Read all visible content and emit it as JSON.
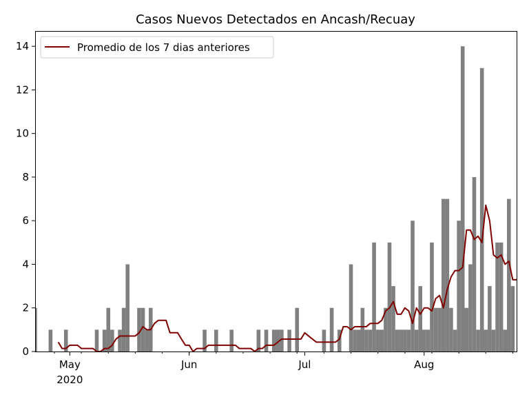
{
  "chart_data": {
    "type": "bar",
    "title": "Casos Nuevos Detectados en Ancash/Recuay",
    "xlabel": "",
    "ylabel": "",
    "xlim": [
      "2020-04-22",
      "2020-08-25"
    ],
    "ylim": [
      0,
      14.7
    ],
    "grid": false,
    "legend_position": "top-left",
    "x_ticks": [
      {
        "date": "2020-05-01",
        "label": "May",
        "sublabel": "2020"
      },
      {
        "date": "2020-06-01",
        "label": "Jun",
        "sublabel": ""
      },
      {
        "date": "2020-07-01",
        "label": "Jul",
        "sublabel": ""
      },
      {
        "date": "2020-08-01",
        "label": "Aug",
        "sublabel": ""
      }
    ],
    "y_ticks": [
      0,
      2,
      4,
      6,
      8,
      10,
      12,
      14
    ],
    "bar_color": "#808080",
    "line_color": "#800000",
    "series": [
      {
        "kind": "bar",
        "x": [
          "2020-04-22",
          "2020-04-26",
          "2020-04-30",
          "2020-05-08",
          "2020-05-10",
          "2020-05-11",
          "2020-05-12",
          "2020-05-14",
          "2020-05-15",
          "2020-05-16",
          "2020-05-19",
          "2020-05-20",
          "2020-05-21",
          "2020-05-22",
          "2020-06-05",
          "2020-06-08",
          "2020-06-12",
          "2020-06-19",
          "2020-06-21",
          "2020-06-23",
          "2020-06-24",
          "2020-06-25",
          "2020-06-27",
          "2020-06-29",
          "2020-07-06",
          "2020-07-08",
          "2020-07-10",
          "2020-07-13",
          "2020-07-14",
          "2020-07-15",
          "2020-07-16",
          "2020-07-17",
          "2020-07-18",
          "2020-07-19",
          "2020-07-20",
          "2020-07-21",
          "2020-07-22",
          "2020-07-23",
          "2020-07-24",
          "2020-07-25",
          "2020-07-26",
          "2020-07-27",
          "2020-07-28",
          "2020-07-29",
          "2020-07-30",
          "2020-07-31",
          "2020-08-01",
          "2020-08-02",
          "2020-08-03",
          "2020-08-04",
          "2020-08-05",
          "2020-08-06",
          "2020-08-07",
          "2020-08-08",
          "2020-08-09",
          "2020-08-10",
          "2020-08-11",
          "2020-08-12",
          "2020-08-13",
          "2020-08-14",
          "2020-08-15",
          "2020-08-16",
          "2020-08-17",
          "2020-08-18",
          "2020-08-19",
          "2020-08-20",
          "2020-08-21",
          "2020-08-22",
          "2020-08-23",
          "2020-08-24"
        ],
        "values": [
          2,
          1,
          1,
          1,
          1,
          2,
          1,
          1,
          2,
          4,
          2,
          2,
          1,
          2,
          1,
          1,
          1,
          1,
          1,
          1,
          1,
          1,
          1,
          2,
          1,
          2,
          1,
          4,
          1,
          1,
          2,
          1,
          1,
          5,
          1,
          1,
          2,
          5,
          3,
          1,
          1,
          1,
          1,
          6,
          1,
          3,
          1,
          1,
          5,
          2,
          2,
          7,
          7,
          2,
          1,
          6,
          14,
          2,
          4,
          8,
          1,
          13,
          1,
          3,
          1,
          5,
          5,
          1,
          7,
          3
        ]
      },
      {
        "kind": "line",
        "name": "Promedio de los 7 dias anteriores",
        "x": [
          "2020-04-28",
          "2020-04-29",
          "2020-04-30",
          "2020-05-01",
          "2020-05-02",
          "2020-05-03",
          "2020-05-04",
          "2020-05-05",
          "2020-05-06",
          "2020-05-07",
          "2020-05-08",
          "2020-05-09",
          "2020-05-10",
          "2020-05-11",
          "2020-05-12",
          "2020-05-13",
          "2020-05-14",
          "2020-05-15",
          "2020-05-16",
          "2020-05-17",
          "2020-05-18",
          "2020-05-19",
          "2020-05-20",
          "2020-05-21",
          "2020-05-22",
          "2020-05-23",
          "2020-05-24",
          "2020-05-25",
          "2020-05-26",
          "2020-05-27",
          "2020-05-28",
          "2020-05-29",
          "2020-05-30",
          "2020-05-31",
          "2020-06-01",
          "2020-06-02",
          "2020-06-03",
          "2020-06-04",
          "2020-06-05",
          "2020-06-06",
          "2020-06-07",
          "2020-06-08",
          "2020-06-09",
          "2020-06-10",
          "2020-06-11",
          "2020-06-12",
          "2020-06-13",
          "2020-06-14",
          "2020-06-15",
          "2020-06-16",
          "2020-06-17",
          "2020-06-18",
          "2020-06-19",
          "2020-06-20",
          "2020-06-21",
          "2020-06-22",
          "2020-06-23",
          "2020-06-24",
          "2020-06-25",
          "2020-06-26",
          "2020-06-27",
          "2020-06-28",
          "2020-06-29",
          "2020-06-30",
          "2020-07-01",
          "2020-07-02",
          "2020-07-03",
          "2020-07-04",
          "2020-07-05",
          "2020-07-06",
          "2020-07-07",
          "2020-07-08",
          "2020-07-09",
          "2020-07-10",
          "2020-07-11",
          "2020-07-12",
          "2020-07-13",
          "2020-07-14",
          "2020-07-15",
          "2020-07-16",
          "2020-07-17",
          "2020-07-18",
          "2020-07-19",
          "2020-07-20",
          "2020-07-21",
          "2020-07-22",
          "2020-07-23",
          "2020-07-24",
          "2020-07-25",
          "2020-07-26",
          "2020-07-27",
          "2020-07-28",
          "2020-07-29",
          "2020-07-30",
          "2020-07-31",
          "2020-08-01",
          "2020-08-02",
          "2020-08-03",
          "2020-08-04",
          "2020-08-05",
          "2020-08-06",
          "2020-08-07",
          "2020-08-08",
          "2020-08-09",
          "2020-08-10",
          "2020-08-11",
          "2020-08-12",
          "2020-08-13",
          "2020-08-14",
          "2020-08-15",
          "2020-08-16",
          "2020-08-17",
          "2020-08-18",
          "2020-08-19",
          "2020-08-20",
          "2020-08-21",
          "2020-08-22",
          "2020-08-23",
          "2020-08-24",
          "2020-08-25"
        ],
        "values": [
          0.43,
          0.14,
          0.14,
          0.29,
          0.29,
          0.29,
          0.14,
          0.14,
          0.14,
          0.14,
          0.0,
          0.0,
          0.14,
          0.14,
          0.29,
          0.57,
          0.71,
          0.71,
          0.71,
          0.71,
          0.71,
          0.86,
          1.14,
          1.0,
          1.0,
          1.29,
          1.43,
          1.43,
          1.43,
          0.86,
          0.86,
          0.86,
          0.57,
          0.29,
          0.29,
          0.0,
          0.14,
          0.14,
          0.14,
          0.29,
          0.29,
          0.29,
          0.29,
          0.29,
          0.29,
          0.29,
          0.29,
          0.14,
          0.14,
          0.14,
          0.14,
          0.0,
          0.14,
          0.14,
          0.29,
          0.29,
          0.29,
          0.43,
          0.57,
          0.57,
          0.57,
          0.57,
          0.57,
          0.57,
          0.86,
          0.71,
          0.57,
          0.43,
          0.43,
          0.43,
          0.43,
          0.43,
          0.43,
          0.57,
          1.14,
          1.14,
          1.0,
          1.14,
          1.14,
          1.14,
          1.14,
          1.29,
          1.29,
          1.29,
          1.43,
          1.86,
          2.0,
          2.29,
          1.71,
          1.71,
          2.0,
          1.86,
          1.29,
          2.0,
          1.71,
          2.0,
          2.0,
          1.86,
          2.43,
          2.57,
          2.0,
          2.86,
          3.43,
          3.71,
          3.71,
          3.86,
          5.57,
          5.57,
          5.14,
          5.29,
          5.0,
          6.71,
          6.0,
          4.43,
          4.29,
          4.43,
          4.0,
          4.14,
          3.29,
          3.29
        ]
      }
    ]
  }
}
